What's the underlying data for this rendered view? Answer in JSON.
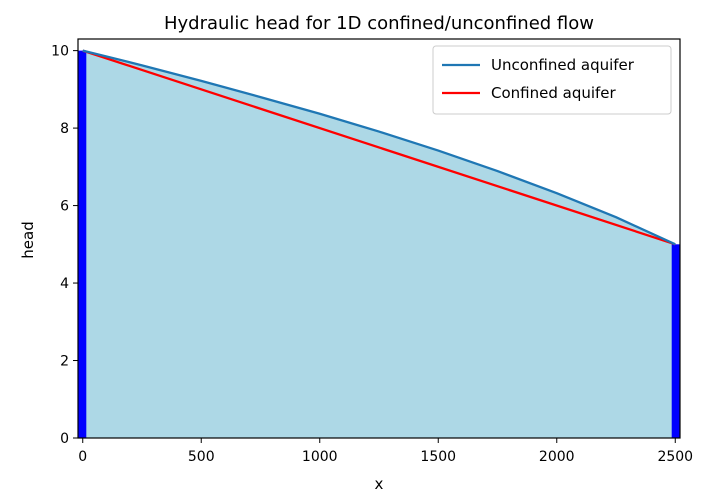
{
  "chart_data": {
    "type": "line",
    "title": "Hydraulic head for 1D confined/unconfined flow",
    "xlabel": "x",
    "ylabel": "head",
    "xlim": [
      -20,
      2520
    ],
    "ylim": [
      0,
      10.3
    ],
    "xticks": [
      0,
      500,
      1000,
      1500,
      2000,
      2500
    ],
    "yticks": [
      0,
      2,
      4,
      6,
      8,
      10
    ],
    "grid": false,
    "legend_position": "top-right",
    "fill_color": "#add8e6",
    "boundary_color": "#0000ff",
    "boundaries": [
      {
        "x_from": -20,
        "x_to": 15,
        "head": 10
      },
      {
        "x_from": 2485,
        "x_to": 2520,
        "head": 5
      }
    ],
    "series": [
      {
        "name": "Unconfined aquifer",
        "color": "#1f77b4",
        "x": [
          0,
          250,
          500,
          750,
          1000,
          1250,
          1500,
          1750,
          2000,
          2250,
          2500
        ],
        "y": [
          10.0,
          9.62,
          9.22,
          8.8,
          8.37,
          7.91,
          7.42,
          6.89,
          6.32,
          5.7,
          5.0
        ]
      },
      {
        "name": "Confined aquifer",
        "color": "#ff0000",
        "x": [
          0,
          2500
        ],
        "y": [
          10.0,
          5.0
        ]
      }
    ]
  }
}
